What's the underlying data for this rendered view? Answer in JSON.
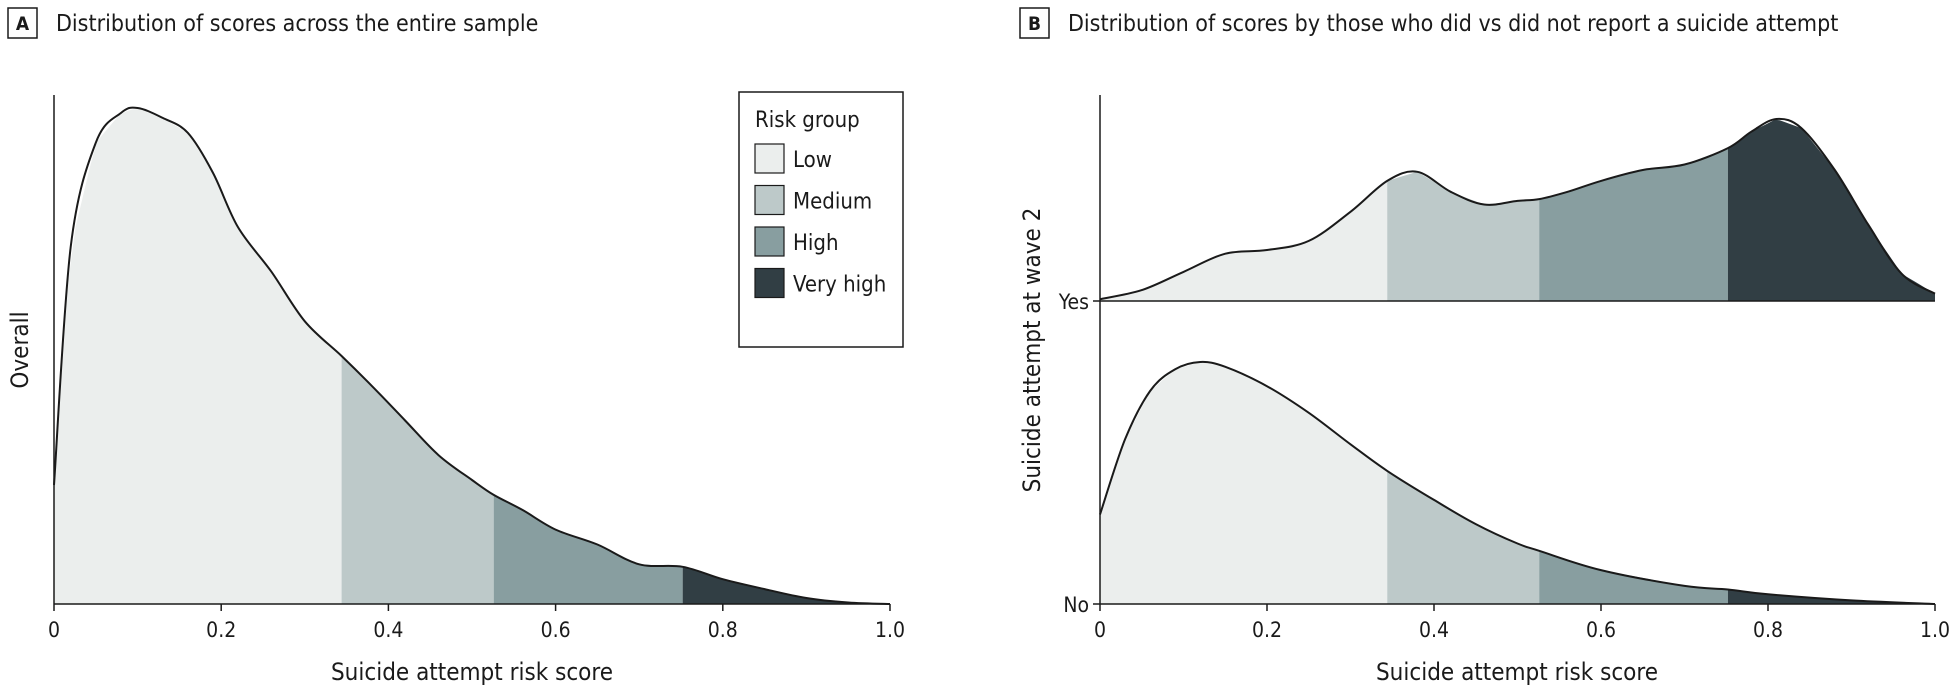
{
  "chart_data": [
    {
      "panel": "A",
      "title": "Distribution of scores across the entire sample",
      "type": "area",
      "xlabel": "Suicide attempt risk score",
      "ylabel": "Overall",
      "xlim": [
        0,
        1.0
      ],
      "xticks": [
        "0",
        "0.2",
        "0.4",
        "0.6",
        "0.8",
        "1.0"
      ],
      "x": [
        0,
        0.02,
        0.05,
        0.08,
        0.1,
        0.13,
        0.16,
        0.19,
        0.22,
        0.26,
        0.3,
        0.344,
        0.38,
        0.42,
        0.46,
        0.5,
        0.526,
        0.56,
        0.6,
        0.65,
        0.7,
        0.752,
        0.8,
        0.85,
        0.9,
        0.95,
        1.0
      ],
      "density": [
        0.24,
        0.72,
        0.93,
        0.99,
        1.0,
        0.98,
        0.95,
        0.87,
        0.76,
        0.67,
        0.57,
        0.5,
        0.44,
        0.37,
        0.3,
        0.25,
        0.22,
        0.19,
        0.15,
        0.12,
        0.08,
        0.075,
        0.05,
        0.03,
        0.012,
        0.003,
        0.0
      ],
      "risk_groups": [
        {
          "name": "Low",
          "from": 0,
          "to": 0.344,
          "color": "#ebeeed"
        },
        {
          "name": "Medium",
          "from": 0.344,
          "to": 0.526,
          "color": "#bdc9c9"
        },
        {
          "name": "High",
          "from": 0.526,
          "to": 0.752,
          "color": "#889ea0"
        },
        {
          "name": "Very high",
          "from": 0.752,
          "to": 1.0,
          "color": "#313e44"
        }
      ],
      "legend": {
        "title": "Risk group",
        "entries": [
          "Low",
          "Medium",
          "High",
          "Very high"
        ],
        "position": "top-right"
      }
    },
    {
      "panel": "B",
      "title": "Distribution of scores by those who did vs did not report a suicide attempt",
      "type": "area",
      "xlabel": "Suicide attempt risk score",
      "ylabel": "Suicide attempt at wave 2",
      "xlim": [
        0,
        1.0
      ],
      "xticks": [
        "0",
        "0.2",
        "0.4",
        "0.6",
        "0.8",
        "1.0"
      ],
      "yticks": [
        "Yes",
        "No"
      ],
      "series": [
        {
          "name": "Yes",
          "x": [
            0,
            0.05,
            0.1,
            0.15,
            0.2,
            0.25,
            0.3,
            0.344,
            0.38,
            0.42,
            0.46,
            0.5,
            0.526,
            0.56,
            0.6,
            0.65,
            0.7,
            0.752,
            0.78,
            0.81,
            0.84,
            0.88,
            0.92,
            0.96,
            1.0
          ],
          "density": [
            0.01,
            0.06,
            0.16,
            0.26,
            0.28,
            0.33,
            0.49,
            0.66,
            0.71,
            0.6,
            0.53,
            0.55,
            0.56,
            0.6,
            0.66,
            0.72,
            0.75,
            0.84,
            0.93,
            1.0,
            0.95,
            0.72,
            0.42,
            0.15,
            0.04
          ]
        },
        {
          "name": "No",
          "x": [
            0,
            0.03,
            0.06,
            0.09,
            0.12,
            0.15,
            0.2,
            0.25,
            0.3,
            0.344,
            0.4,
            0.45,
            0.5,
            0.526,
            0.6,
            0.7,
            0.752,
            0.8,
            0.9,
            1.0
          ],
          "density": [
            0.37,
            0.68,
            0.88,
            0.97,
            1.0,
            0.98,
            0.9,
            0.79,
            0.66,
            0.55,
            0.43,
            0.33,
            0.25,
            0.22,
            0.14,
            0.075,
            0.06,
            0.04,
            0.015,
            0.0
          ]
        }
      ],
      "risk_groups": [
        {
          "name": "Low",
          "from": 0,
          "to": 0.344,
          "color": "#ebeeed"
        },
        {
          "name": "Medium",
          "from": 0.344,
          "to": 0.526,
          "color": "#bdc9c9"
        },
        {
          "name": "High",
          "from": 0.526,
          "to": 0.752,
          "color": "#889ea0"
        },
        {
          "name": "Very high",
          "from": 0.752,
          "to": 1.0,
          "color": "#313e44"
        }
      ]
    }
  ]
}
